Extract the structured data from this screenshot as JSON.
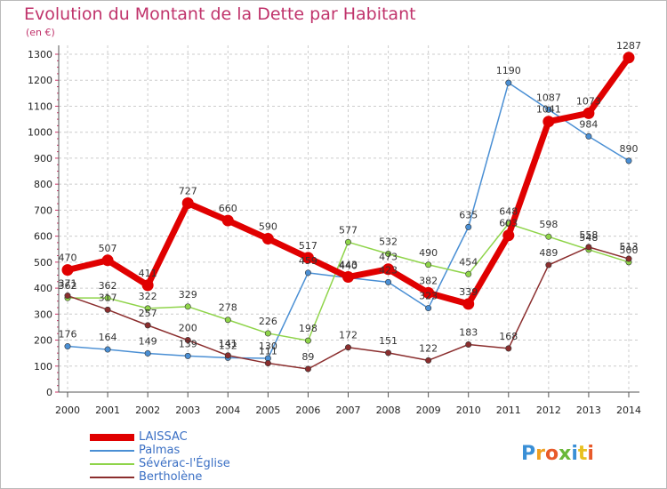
{
  "title": "Evolution du Montant de la Dette par Habitant",
  "subtitle": "(en €)",
  "logo_text": "Proxiti",
  "colors": {
    "title": "#c0336b",
    "grid": "#cccccc",
    "axis": "#555555",
    "legend_text": "#3a6fc4"
  },
  "chart_data": {
    "type": "line",
    "title": "Evolution du Montant de la Dette par Habitant",
    "subtitle": "(en €)",
    "xlabel": "",
    "ylabel": "",
    "ylim": [
      0,
      1300
    ],
    "yticks": [
      0,
      100,
      200,
      300,
      400,
      500,
      600,
      700,
      800,
      900,
      1000,
      1100,
      1200,
      1300
    ],
    "grid": true,
    "legend_position": "bottom-left",
    "categories": [
      "2000",
      "2001",
      "2002",
      "2003",
      "2004",
      "2005",
      "2006",
      "2007",
      "2008",
      "2009",
      "2010",
      "2011",
      "2012",
      "2013",
      "2014"
    ],
    "series": [
      {
        "name": "LAISSAC",
        "color": "#e00000",
        "values": [
          470,
          507,
          411,
          727,
          660,
          590,
          517,
          443,
          473,
          382,
          339,
          603,
          1041,
          1073,
          1287
        ],
        "labels": [
          "470",
          "507",
          "411",
          "727",
          "660",
          "590",
          "517",
          "443",
          "473",
          "382",
          "339",
          "603",
          "1041",
          "1073",
          "1287"
        ]
      },
      {
        "name": "Palmas",
        "color": "#4a8fd4",
        "values": [
          176,
          164,
          149,
          139,
          132,
          130,
          459,
          440,
          423,
          323,
          635,
          1190,
          1087,
          984,
          890
        ],
        "labels": [
          "176",
          "164",
          "149",
          "139",
          "132",
          "130",
          "459",
          "440",
          "423",
          "323",
          "635",
          "1190",
          "1087",
          "984",
          "890"
        ]
      },
      {
        "name": "Sévérac-l'Église",
        "color": "#8fd44a",
        "values": [
          362,
          362,
          322,
          329,
          278,
          226,
          198,
          577,
          532,
          490,
          454,
          648,
          598,
          548,
          500
        ],
        "labels": [
          "362",
          "362",
          "322",
          "329",
          "278",
          "226",
          "198",
          "577",
          "532",
          "490",
          "454",
          "648",
          "598",
          "548",
          "500"
        ]
      },
      {
        "name": "Bertholène",
        "color": "#8b2e2e",
        "values": [
          371,
          317,
          257,
          200,
          141,
          111,
          89,
          172,
          151,
          122,
          183,
          168,
          489,
          558,
          513
        ],
        "labels": [
          "371",
          "317",
          "257",
          "200",
          "141",
          "111",
          "89",
          "172",
          "151",
          "122",
          "183",
          "168",
          "489",
          "558",
          "513"
        ]
      }
    ]
  }
}
